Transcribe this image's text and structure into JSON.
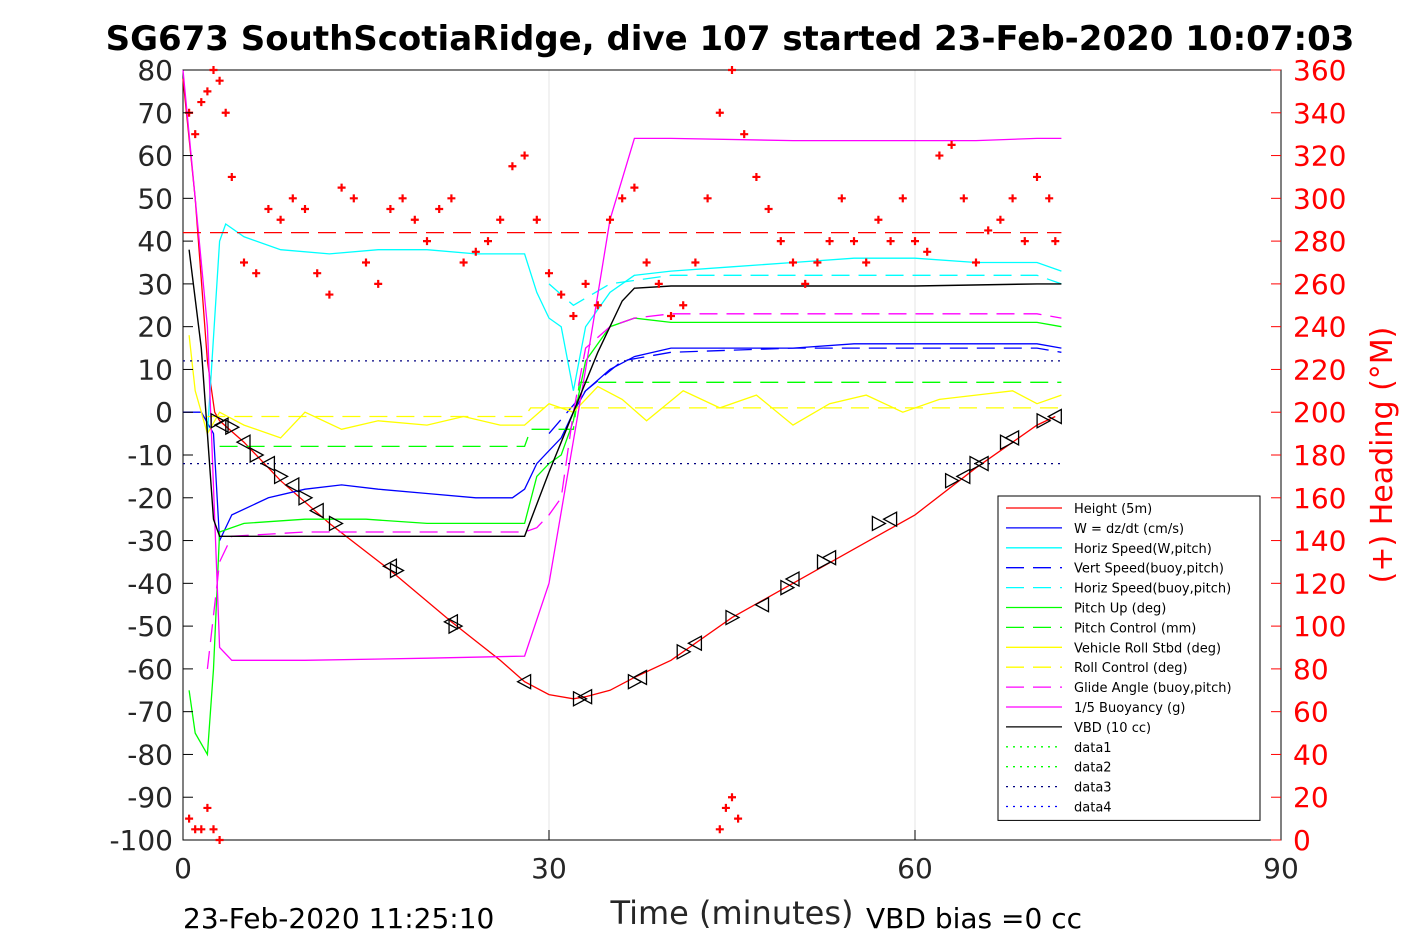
{
  "chart_data": {
    "type": "line",
    "title": "SG673 SouthScotiaRidge, dive 107 started 23-Feb-2020 10:07:03",
    "xlabel": "Time (minutes)",
    "ylabel_right": "(+) Heading (°M)",
    "xlim": [
      0,
      90
    ],
    "ylim_left": [
      -100,
      80
    ],
    "ylim_right": [
      0,
      360
    ],
    "x_ticks": [
      "0",
      "30",
      "60",
      "90"
    ],
    "y_left_ticks": [
      "80",
      "70",
      "60",
      "50",
      "40",
      "30",
      "20",
      "10",
      "0",
      "-10",
      "-20",
      "-30",
      "-40",
      "-50",
      "-60",
      "-70",
      "-80",
      "-90",
      "-100"
    ],
    "y_right_ticks": [
      "360",
      "340",
      "320",
      "300",
      "280",
      "260",
      "240",
      "220",
      "200",
      "180",
      "160",
      "140",
      "120",
      "100",
      "80",
      "60",
      "40",
      "20",
      "0"
    ],
    "grid": true,
    "legend_position": "bottom-right",
    "footer_left": "23-Feb-2020 11:25:10",
    "footer_right": "VBD bias =0 cc",
    "legend": [
      {
        "label": "Height (5m)",
        "color": "#ff0000",
        "dash": "solid"
      },
      {
        "label": "W = dz/dt (cm/s)",
        "color": "#0000ff",
        "dash": "solid"
      },
      {
        "label": "Horiz Speed(W,pitch)",
        "color": "#00ffff",
        "dash": "solid"
      },
      {
        "label": "Vert Speed(buoy,pitch)",
        "color": "#0000ff",
        "dash": "dashed"
      },
      {
        "label": "Horiz Speed(buoy,pitch)",
        "color": "#00ffff",
        "dash": "dashed"
      },
      {
        "label": "Pitch Up (deg)",
        "color": "#00ff00",
        "dash": "solid"
      },
      {
        "label": "Pitch Control (mm)",
        "color": "#00ff00",
        "dash": "dashed"
      },
      {
        "label": "Vehicle Roll Stbd (deg)",
        "color": "#ffff00",
        "dash": "solid"
      },
      {
        "label": "Roll Control (deg)",
        "color": "#ffff00",
        "dash": "dashed"
      },
      {
        "label": "Glide Angle (buoy,pitch)",
        "color": "#ff00ff",
        "dash": "dashed"
      },
      {
        "label": "1/5 Buoyancy (g)",
        "color": "#ff00ff",
        "dash": "solid"
      },
      {
        "label": "VBD (10 cc)",
        "color": "#000000",
        "dash": "solid"
      },
      {
        "label": "data1",
        "color": "#00ff00",
        "dash": "dotted"
      },
      {
        "label": "data2",
        "color": "#00ff00",
        "dash": "dotted"
      },
      {
        "label": "data3",
        "color": "#000080",
        "dash": "dotted"
      },
      {
        "label": "data4",
        "color": "#0000ff",
        "dash": "dotted"
      }
    ],
    "series": [
      {
        "name": "Height (5m)",
        "axis": "left",
        "color": "#ff0000",
        "dash": "solid",
        "x": [
          0,
          1,
          2,
          2.6,
          3,
          5,
          8,
          12,
          17,
          22,
          26,
          28,
          30,
          32,
          33,
          35,
          37,
          40,
          45,
          50,
          55,
          60,
          65,
          68,
          70,
          71.5
        ],
        "y": [
          78,
          50,
          12,
          0,
          -2,
          -7,
          -16,
          -26,
          -37,
          -49,
          -58,
          -63,
          -66,
          -67,
          -66.5,
          -65,
          -62,
          -58,
          -48,
          -40,
          -32,
          -24,
          -13,
          -7,
          -3,
          -1
        ]
      },
      {
        "name": "W = dz/dt (cm/s)",
        "axis": "left",
        "color": "#0000ff",
        "dash": "solid",
        "x": [
          0,
          1.5,
          2.5,
          3,
          4,
          7,
          10,
          13,
          16,
          20,
          24,
          27,
          28,
          29,
          30,
          31,
          32,
          33,
          35,
          37,
          40,
          45,
          50,
          55,
          60,
          65,
          70,
          72
        ],
        "y": [
          0,
          0,
          -5,
          -30,
          -24,
          -20,
          -18,
          -17,
          -18,
          -19,
          -20,
          -20,
          -18,
          -12,
          -9,
          -6,
          0,
          5,
          10,
          13,
          15,
          15,
          15,
          16,
          16,
          16,
          16,
          15
        ]
      },
      {
        "name": "Horiz Speed(W,pitch)",
        "axis": "left",
        "color": "#00ffff",
        "dash": "solid",
        "x": [
          2,
          3,
          3.5,
          5,
          8,
          12,
          16,
          20,
          24,
          28,
          29,
          30,
          31,
          32,
          33,
          35,
          37,
          40,
          45,
          50,
          55,
          60,
          65,
          70,
          72
        ],
        "y": [
          -5,
          40,
          44,
          41,
          38,
          37,
          38,
          38,
          37,
          37,
          28,
          22,
          20,
          5,
          20,
          28,
          32,
          33,
          34,
          35,
          36,
          36,
          35,
          35,
          33
        ]
      },
      {
        "name": "Vert Speed(buoy,pitch)",
        "axis": "left",
        "color": "#0000ff",
        "dash": "dashed",
        "x": [
          30,
          33,
          36,
          40,
          50,
          60,
          70,
          72
        ],
        "y": [
          -5,
          5,
          12,
          14,
          15,
          15,
          15,
          14
        ]
      },
      {
        "name": "Horiz Speed(buoy,pitch)",
        "axis": "left",
        "color": "#00ffff",
        "dash": "dashed",
        "x": [
          30,
          32,
          35,
          40,
          50,
          60,
          70,
          72
        ],
        "y": [
          30,
          25,
          30,
          32,
          32,
          32,
          32,
          30
        ]
      },
      {
        "name": "Pitch Up (deg)",
        "axis": "left",
        "color": "#00ff00",
        "dash": "solid",
        "x": [
          0.5,
          1,
          2,
          2.5,
          3,
          5,
          10,
          15,
          20,
          25,
          28,
          29,
          30,
          31,
          32,
          33,
          35,
          37,
          40,
          50,
          60,
          70,
          72
        ],
        "y": [
          -65,
          -75,
          -80,
          -60,
          -28,
          -26,
          -25,
          -25,
          -26,
          -26,
          -26,
          -15,
          -12,
          -10,
          -2,
          12,
          20,
          22,
          21,
          21,
          21,
          21,
          20
        ]
      },
      {
        "name": "Pitch Control (mm)",
        "axis": "left",
        "color": "#00ff00",
        "dash": "dashed",
        "x": [
          3,
          28,
          28.5,
          32,
          32.5,
          72
        ],
        "y": [
          -8,
          -8,
          -4,
          -4,
          7,
          7
        ]
      },
      {
        "name": "Vehicle Roll Stbd (deg)",
        "axis": "left",
        "color": "#ffff00",
        "dash": "solid",
        "x": [
          0.5,
          1,
          2,
          3,
          5,
          8,
          10,
          13,
          16,
          20,
          23,
          26,
          28,
          30,
          32,
          34,
          36,
          38,
          41,
          44,
          47,
          50,
          53,
          56,
          59,
          62,
          65,
          68,
          70,
          72
        ],
        "y": [
          18,
          5,
          -5,
          0,
          -3,
          -6,
          0,
          -4,
          -2,
          -3,
          -1,
          -3,
          -3,
          2,
          0,
          6,
          3,
          -2,
          5,
          1,
          4,
          -3,
          2,
          4,
          0,
          3,
          4,
          5,
          2,
          4
        ]
      },
      {
        "name": "Roll Control (deg)",
        "axis": "left",
        "color": "#ffff00",
        "dash": "dashed",
        "x": [
          2,
          28,
          28.5,
          72
        ],
        "y": [
          -1,
          -1,
          1,
          1
        ]
      },
      {
        "name": "Glide Angle (buoy,pitch)",
        "axis": "left",
        "color": "#ff00ff",
        "dash": "dashed",
        "x": [
          2,
          3,
          4,
          10,
          20,
          28,
          29,
          30,
          31,
          32,
          33,
          35,
          37,
          40,
          50,
          60,
          70,
          72
        ],
        "y": [
          -60,
          -35,
          -29,
          -28,
          -28,
          -28,
          -27,
          -24,
          -20,
          0,
          15,
          20,
          22,
          23,
          23,
          23,
          23,
          22
        ]
      },
      {
        "name": "1/5 Buoyancy (g)",
        "axis": "left",
        "color": "#ff00ff",
        "dash": "solid",
        "x": [
          0,
          1,
          2,
          3,
          4,
          10,
          20,
          28,
          30,
          33,
          35,
          37,
          40,
          50,
          60,
          65,
          70,
          72
        ],
        "y": [
          80,
          50,
          20,
          -55,
          -58,
          -58,
          -57.5,
          -57,
          -40,
          10,
          45,
          64,
          64,
          63.5,
          63.5,
          63.5,
          64,
          64
        ]
      },
      {
        "name": "VBD (10 cc)",
        "axis": "left",
        "color": "#000000",
        "dash": "solid",
        "x": [
          0.5,
          1.5,
          2.5,
          3,
          10,
          20,
          28,
          30,
          32,
          34,
          36,
          37,
          40,
          50,
          60,
          70,
          72
        ],
        "y": [
          38,
          15,
          -25,
          -29,
          -29,
          -29,
          -29,
          -14,
          0,
          14,
          26,
          29,
          29.5,
          29.5,
          29.5,
          30,
          30
        ]
      },
      {
        "name": "data3",
        "axis": "left",
        "color": "#000080",
        "dash": "dotted",
        "x": [
          0,
          72
        ],
        "y": [
          12,
          12
        ]
      },
      {
        "name": "data4",
        "axis": "left",
        "color": "#000080",
        "dash": "dotted",
        "x": [
          0,
          72
        ],
        "y": [
          -12,
          -12
        ]
      },
      {
        "name": "heading-reference",
        "axis": "right",
        "color": "#ff0000",
        "dash": "dashed",
        "x": [
          0,
          72
        ],
        "y": [
          284,
          284
        ]
      }
    ],
    "heading_points": {
      "axis": "right",
      "marker": "+",
      "color": "#ff0000",
      "x": [
        0.5,
        1,
        1.5,
        2,
        2.5,
        3,
        3.5,
        4,
        5,
        6,
        7,
        8,
        9,
        10,
        11,
        12,
        13,
        14,
        15,
        16,
        17,
        18,
        19,
        20,
        21,
        22,
        23,
        24,
        25,
        26,
        27,
        28,
        29,
        30,
        31,
        32,
        33,
        34,
        35,
        36,
        37,
        38,
        39,
        40,
        41,
        42,
        43,
        44,
        45,
        46,
        47,
        48,
        49,
        50,
        51,
        52,
        53,
        54,
        55,
        56,
        57,
        58,
        59,
        60,
        61,
        62,
        63,
        64,
        65,
        66,
        67,
        68,
        69,
        70,
        71,
        71.5,
        0.5,
        1,
        1.5,
        2,
        2.5,
        3,
        44,
        44.5,
        45,
        45.5
      ],
      "y": [
        340,
        330,
        345,
        350,
        360,
        355,
        340,
        310,
        270,
        265,
        295,
        290,
        300,
        295,
        265,
        255,
        305,
        300,
        270,
        260,
        295,
        300,
        290,
        280,
        295,
        300,
        270,
        275,
        280,
        290,
        315,
        320,
        290,
        265,
        255,
        245,
        260,
        250,
        290,
        300,
        305,
        270,
        260,
        245,
        250,
        270,
        300,
        340,
        360,
        330,
        310,
        295,
        280,
        270,
        260,
        270,
        280,
        300,
        280,
        270,
        290,
        280,
        300,
        280,
        275,
        320,
        325,
        300,
        270,
        285,
        290,
        300,
        280,
        310,
        300,
        280,
        10,
        5,
        5,
        15,
        5,
        0,
        5,
        15,
        20,
        10
      ]
    },
    "track_markers": {
      "color": "#000000",
      "x": [
        2.8,
        3.2,
        4,
        5,
        6,
        7,
        8,
        9,
        10,
        11,
        12.5,
        17,
        17.5,
        22,
        22.3,
        28,
        32.5,
        33,
        37,
        37.5,
        41,
        42,
        45,
        47.5,
        49.5,
        50,
        52.5,
        53,
        57,
        58,
        63,
        64,
        65,
        65.5,
        67.5,
        68,
        70.5,
        71.5
      ],
      "y": [
        -2,
        -3,
        -3.5,
        -7,
        -10,
        -12,
        -15,
        -17,
        -20,
        -23,
        -26,
        -36,
        -37,
        -49,
        -50,
        -63,
        -67,
        -66.5,
        -63,
        -62,
        -56,
        -54,
        -48,
        -45,
        -41,
        -39,
        -35,
        -34,
        -26,
        -25,
        -16,
        -15,
        -12,
        -12,
        -7,
        -6,
        -2,
        -1
      ]
    }
  }
}
